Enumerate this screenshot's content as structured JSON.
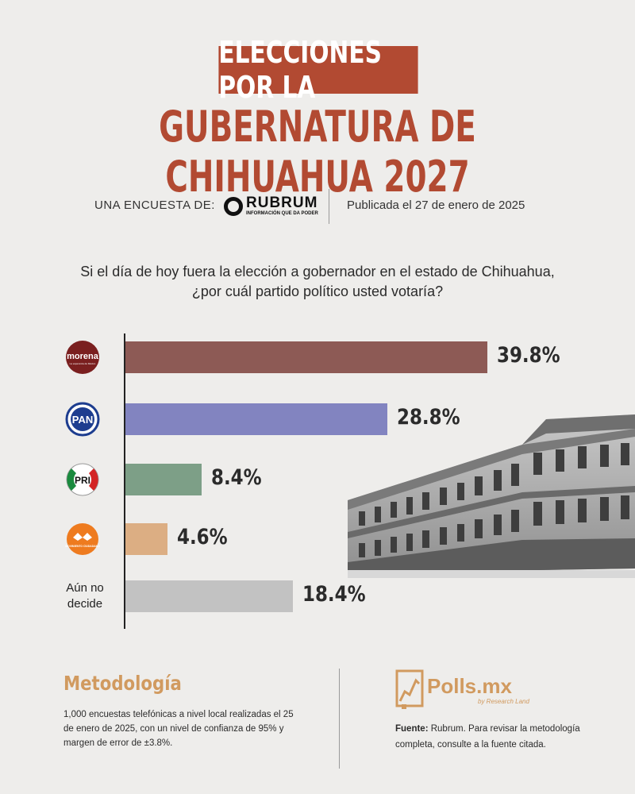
{
  "header": {
    "title_line1": "ELECCIONES POR LA",
    "title_line2": "GUBERNATURA DE CHIHUAHUA 2027"
  },
  "source": {
    "label": "UNA ENCUESTA DE:",
    "pollster_name": "RUBRUM",
    "pollster_tagline": "INFORMACIÓN QUE DA PODER",
    "published": "Publicada el 27 de enero de 2025"
  },
  "question": {
    "line1": "Si el día de hoy fuera la elección a gobernador en el estado de Chihuahua,",
    "line2": "¿por cuál partido político usted votaría?"
  },
  "party_logos": {
    "morena": "morena",
    "morena_sub": "La esperanza de México",
    "pan": "PAN",
    "pri": "PRI",
    "mc": "MOVIMIENTO CIUDADANO"
  },
  "chart_data": {
    "type": "bar",
    "orientation": "horizontal",
    "categories": [
      "morena",
      "PAN",
      "PRI",
      "MOVIMIENTO CIUDADANO",
      "Aún no decide"
    ],
    "values": [
      39.8,
      28.8,
      8.4,
      4.6,
      18.4
    ],
    "value_labels": [
      "39.8%",
      "28.8%",
      "8.4%",
      "4.6%",
      "18.4%"
    ],
    "colors": [
      "#8d5a55",
      "#8284c0",
      "#7d9f87",
      "#dcae83",
      "#c2c2c2"
    ],
    "undecided_label": [
      "Aún no",
      "decide"
    ],
    "xlim": [
      0,
      100
    ]
  },
  "methodology": {
    "title": "Metodología",
    "text": "1,000 encuestas telefónicas a nivel local realizadas el 25 de enero de 2025, con un nivel de confianza de 95% y margen de error de ±3.8%."
  },
  "branding": {
    "name": "Polls.mx",
    "sub": "by Research Land"
  },
  "footer": {
    "fuente_label": "Fuente:",
    "fuente_text": "Rubrum. Para revisar la metodología completa, consulte a la fuente citada."
  }
}
